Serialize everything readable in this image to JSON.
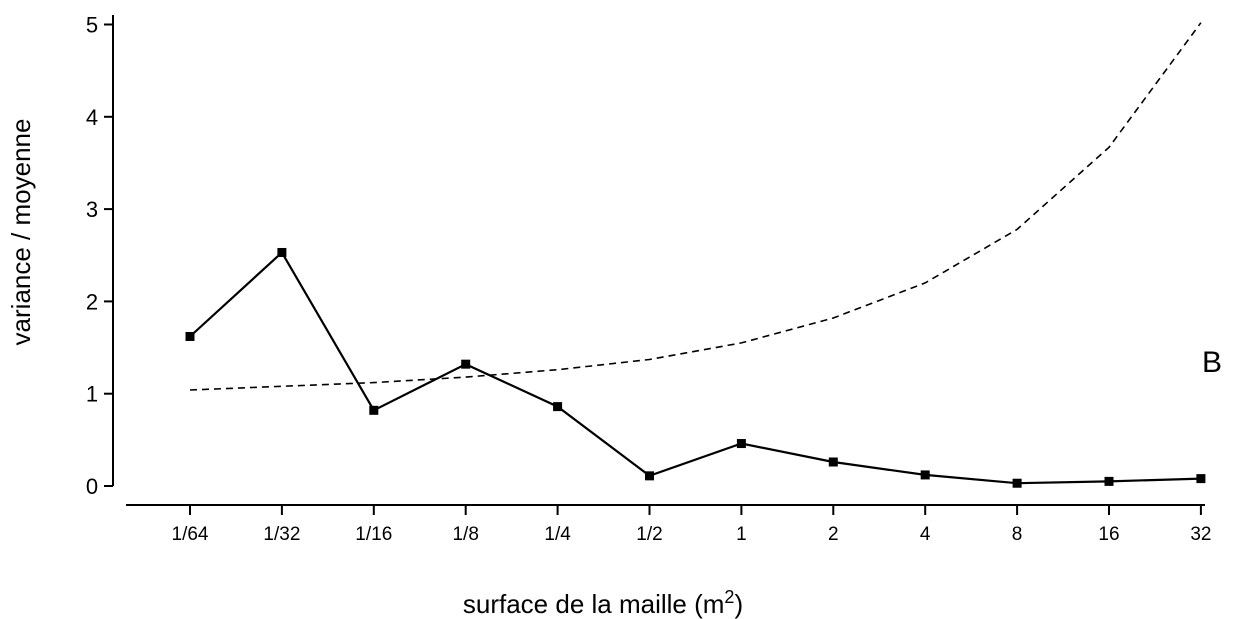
{
  "chart_data": {
    "type": "line",
    "title": "",
    "xlabel": "surface de la maille (m",
    "xlabel_superscript": "2",
    "xlabel_suffix": ")",
    "ylabel": "variance / moyenne",
    "panel_label": "B",
    "categories": [
      "1/64",
      "1/32",
      "1/16",
      "1/8",
      "1/4",
      "1/2",
      "1",
      "2",
      "4",
      "8",
      "16",
      "32"
    ],
    "ylim": [
      0,
      5
    ],
    "yticks": [
      "0",
      "1",
      "2",
      "3",
      "4",
      "5"
    ],
    "grid": false,
    "legend": "none",
    "series": [
      {
        "style": "solid-with-square-markers",
        "color": "#000000",
        "values": [
          1.62,
          2.53,
          0.82,
          1.32,
          0.86,
          0.11,
          0.46,
          0.26,
          0.12,
          0.03,
          0.05,
          0.08
        ]
      },
      {
        "style": "dashed",
        "color": "#000000",
        "values": [
          1.04,
          1.08,
          1.12,
          1.18,
          1.26,
          1.37,
          1.55,
          1.82,
          2.2,
          2.78,
          3.67,
          5.02
        ]
      }
    ]
  }
}
